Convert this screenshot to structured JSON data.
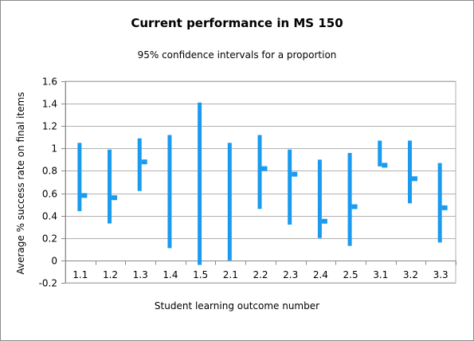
{
  "chart_data": {
    "type": "bar",
    "title": "Current performance in MS 150",
    "subtitle": "95% confidence intervals for a proportion",
    "xlabel": "Student learning outcome number",
    "ylabel": "Average %  success rate on final items",
    "ylim": [
      -0.2,
      1.6
    ],
    "yticks": [
      -0.2,
      0,
      0.2,
      0.4,
      0.6,
      0.8,
      1,
      1.2,
      1.4,
      1.6
    ],
    "ytick_labels": [
      "-0.2",
      "0",
      "0.2",
      "0.4",
      "0.6",
      "0.8",
      "1",
      "1.2",
      "1.4",
      "1.6"
    ],
    "grid": true,
    "color": "#1b9bf0",
    "categories": [
      "1.1",
      "1.2",
      "1.3",
      "1.4",
      "1.5",
      "2.1",
      "2.2",
      "2.3",
      "2.4",
      "2.5",
      "3.1",
      "3.2",
      "3.3"
    ],
    "series": [
      {
        "values_low": [
          0.44,
          0.33,
          0.62,
          0.11,
          -0.04,
          0.0,
          0.46,
          0.32,
          0.2,
          0.13,
          0.84,
          0.51,
          0.16
        ]
      },
      {
        "values_high": [
          1.05,
          0.99,
          1.09,
          1.12,
          1.41,
          1.05,
          1.12,
          0.99,
          0.9,
          0.96,
          1.07,
          1.07,
          0.87
        ]
      },
      {
        "values_point": [
          0.58,
          0.56,
          0.88,
          null,
          null,
          null,
          0.82,
          0.77,
          0.35,
          0.48,
          0.85,
          0.73,
          0.47
        ]
      }
    ]
  }
}
